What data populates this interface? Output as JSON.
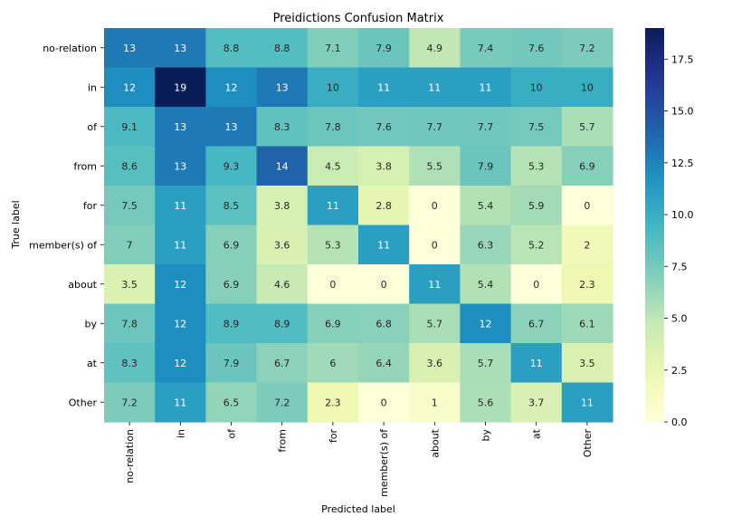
{
  "chart_data": {
    "type": "heatmap",
    "title": "Preidictions Confusion Matrix",
    "xlabel": "Predicted label",
    "ylabel": "True label",
    "x_categories": [
      "no-relation",
      "in",
      "of",
      "from",
      "for",
      "member(s) of",
      "about",
      "by",
      "at",
      "Other"
    ],
    "y_categories": [
      "no-relation",
      "in",
      "of",
      "from",
      "for",
      "member(s) of",
      "about",
      "by",
      "at",
      "Other"
    ],
    "values": [
      [
        13,
        13,
        8.8,
        8.8,
        7.1,
        7.9,
        4.9,
        7.4,
        7.6,
        7.2
      ],
      [
        12,
        19,
        12,
        13,
        10,
        11,
        11,
        11,
        10,
        10
      ],
      [
        9.1,
        13,
        13,
        8.3,
        7.8,
        7.6,
        7.7,
        7.7,
        7.5,
        5.7
      ],
      [
        8.6,
        13,
        9.3,
        14,
        4.5,
        3.8,
        5.5,
        7.9,
        5.3,
        6.9
      ],
      [
        7.5,
        11,
        8.5,
        3.8,
        11,
        2.8,
        0,
        5.4,
        5.9,
        0
      ],
      [
        7,
        11,
        6.9,
        3.6,
        5.3,
        11,
        0,
        6.3,
        5.2,
        2
      ],
      [
        3.5,
        12,
        6.9,
        4.6,
        0,
        0,
        11,
        5.4,
        0,
        2.3
      ],
      [
        7.8,
        12,
        8.9,
        8.9,
        6.9,
        6.8,
        5.7,
        12,
        6.7,
        6.1
      ],
      [
        8.3,
        12,
        7.9,
        6.7,
        6,
        6.4,
        3.6,
        5.7,
        11,
        3.5
      ],
      [
        7.2,
        11,
        6.5,
        7.2,
        2.3,
        0,
        1,
        5.6,
        3.7,
        11
      ]
    ],
    "colormap": "YlGnBu",
    "colorbar": {
      "range": [
        0,
        19
      ],
      "ticks": [
        0.0,
        2.5,
        5.0,
        7.5,
        10.0,
        12.5,
        15.0,
        17.5
      ],
      "tick_labels": [
        "0.0",
        "2.5",
        "5.0",
        "7.5",
        "10.0",
        "12.5",
        "15.0",
        "17.5"
      ]
    },
    "annotations": true,
    "grid": false
  }
}
